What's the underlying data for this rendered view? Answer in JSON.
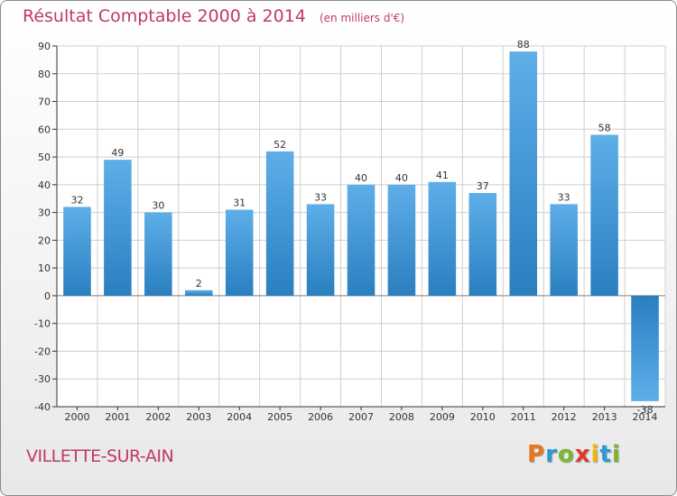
{
  "header": {
    "title": "Résultat Comptable 2000 à 2014",
    "subtitle": "(en milliers d'€)"
  },
  "footer": {
    "town": "VILLETTE-SUR-AIN",
    "logo_letters": [
      "P",
      "r",
      "o",
      "x",
      "i",
      "t",
      "i"
    ],
    "logo_colors": [
      "#e8761c",
      "#2a9ad6",
      "#7cb82f",
      "#e23a2a",
      "#f2b705",
      "#2a9ad6",
      "#7cb82f"
    ]
  },
  "colors": {
    "title": "#c0386a",
    "bar_light": "#5eaee8",
    "bar_dark": "#2a7fc0",
    "grid": "#cfcfcf",
    "axis": "#333333",
    "plot_bg": "#ffffff"
  },
  "chart_data": {
    "type": "bar",
    "title": "Résultat Comptable 2000 à 2014",
    "ylabel": "en milliers d'€",
    "xlabel": "",
    "categories": [
      "2000",
      "2001",
      "2002",
      "2003",
      "2004",
      "2005",
      "2006",
      "2007",
      "2008",
      "2009",
      "2010",
      "2011",
      "2012",
      "2013",
      "2014"
    ],
    "values": [
      32,
      49,
      30,
      2,
      31,
      52,
      33,
      40,
      40,
      41,
      37,
      88,
      33,
      58,
      -38
    ],
    "ylim": [
      -40,
      90
    ],
    "yticks": [
      -40,
      -30,
      -20,
      -10,
      0,
      10,
      20,
      30,
      40,
      50,
      60,
      70,
      80,
      90
    ],
    "grid": true
  }
}
